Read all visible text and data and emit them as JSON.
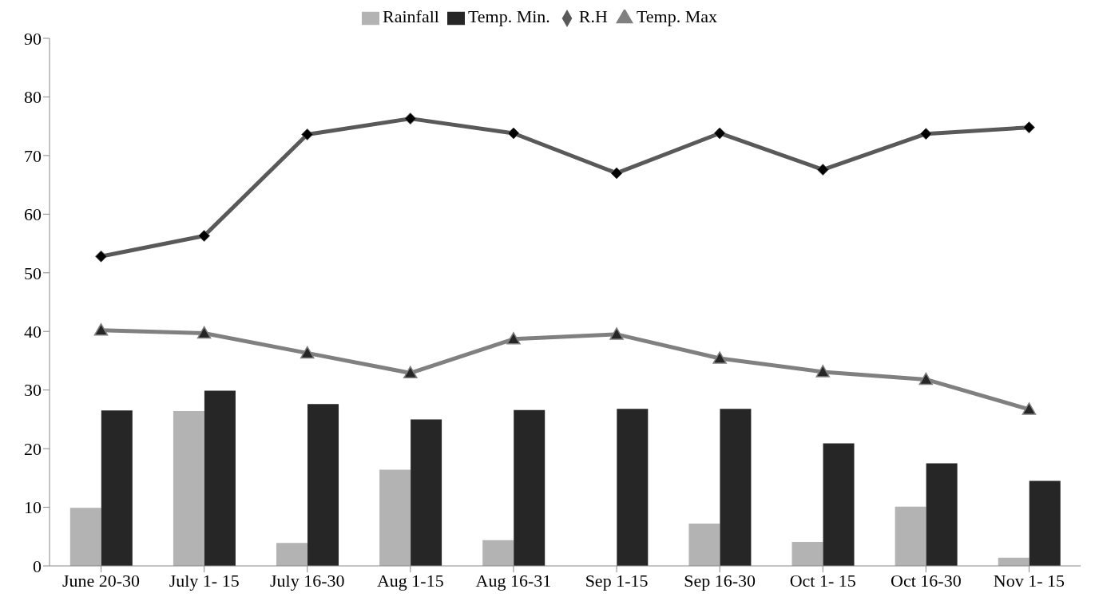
{
  "chart_data": {
    "type": "bar",
    "categories": [
      "June 20-30",
      "July 1- 15",
      "July 16-30",
      "Aug 1-15",
      "Aug 16-31",
      "Sep 1-15",
      "Sep 16-30",
      "Oct 1- 15",
      "Oct 16-30",
      "Nov 1- 15"
    ],
    "series": [
      {
        "name": "Rainfall",
        "color": "#b3b3b3",
        "values": [
          9.9,
          26.4,
          3.9,
          16.4,
          4.4,
          0,
          7.2,
          4.1,
          10.1,
          1.4
        ]
      },
      {
        "name": "Temp. Min.",
        "color": "#262626",
        "values": [
          26.5,
          29.9,
          27.6,
          25.0,
          26.6,
          26.8,
          26.8,
          20.9,
          17.5,
          14.5
        ]
      },
      {
        "name": "R.H",
        "type": "line",
        "color": "#595959",
        "marker": "diamond",
        "values": [
          52.8,
          56.3,
          73.6,
          76.3,
          73.8,
          67.0,
          73.8,
          67.6,
          73.7,
          74.8
        ]
      },
      {
        "name": "Temp. Max",
        "type": "line",
        "color": "#808080",
        "marker": "triangle",
        "values": [
          40.2,
          39.7,
          36.3,
          32.9,
          38.7,
          39.5,
          35.4,
          33.1,
          31.8,
          26.7
        ]
      }
    ],
    "ylim": [
      0,
      90
    ],
    "yticks": [
      0,
      10,
      20,
      30,
      40,
      50,
      60,
      70,
      80,
      90
    ],
    "grid": false,
    "legend": "top"
  }
}
